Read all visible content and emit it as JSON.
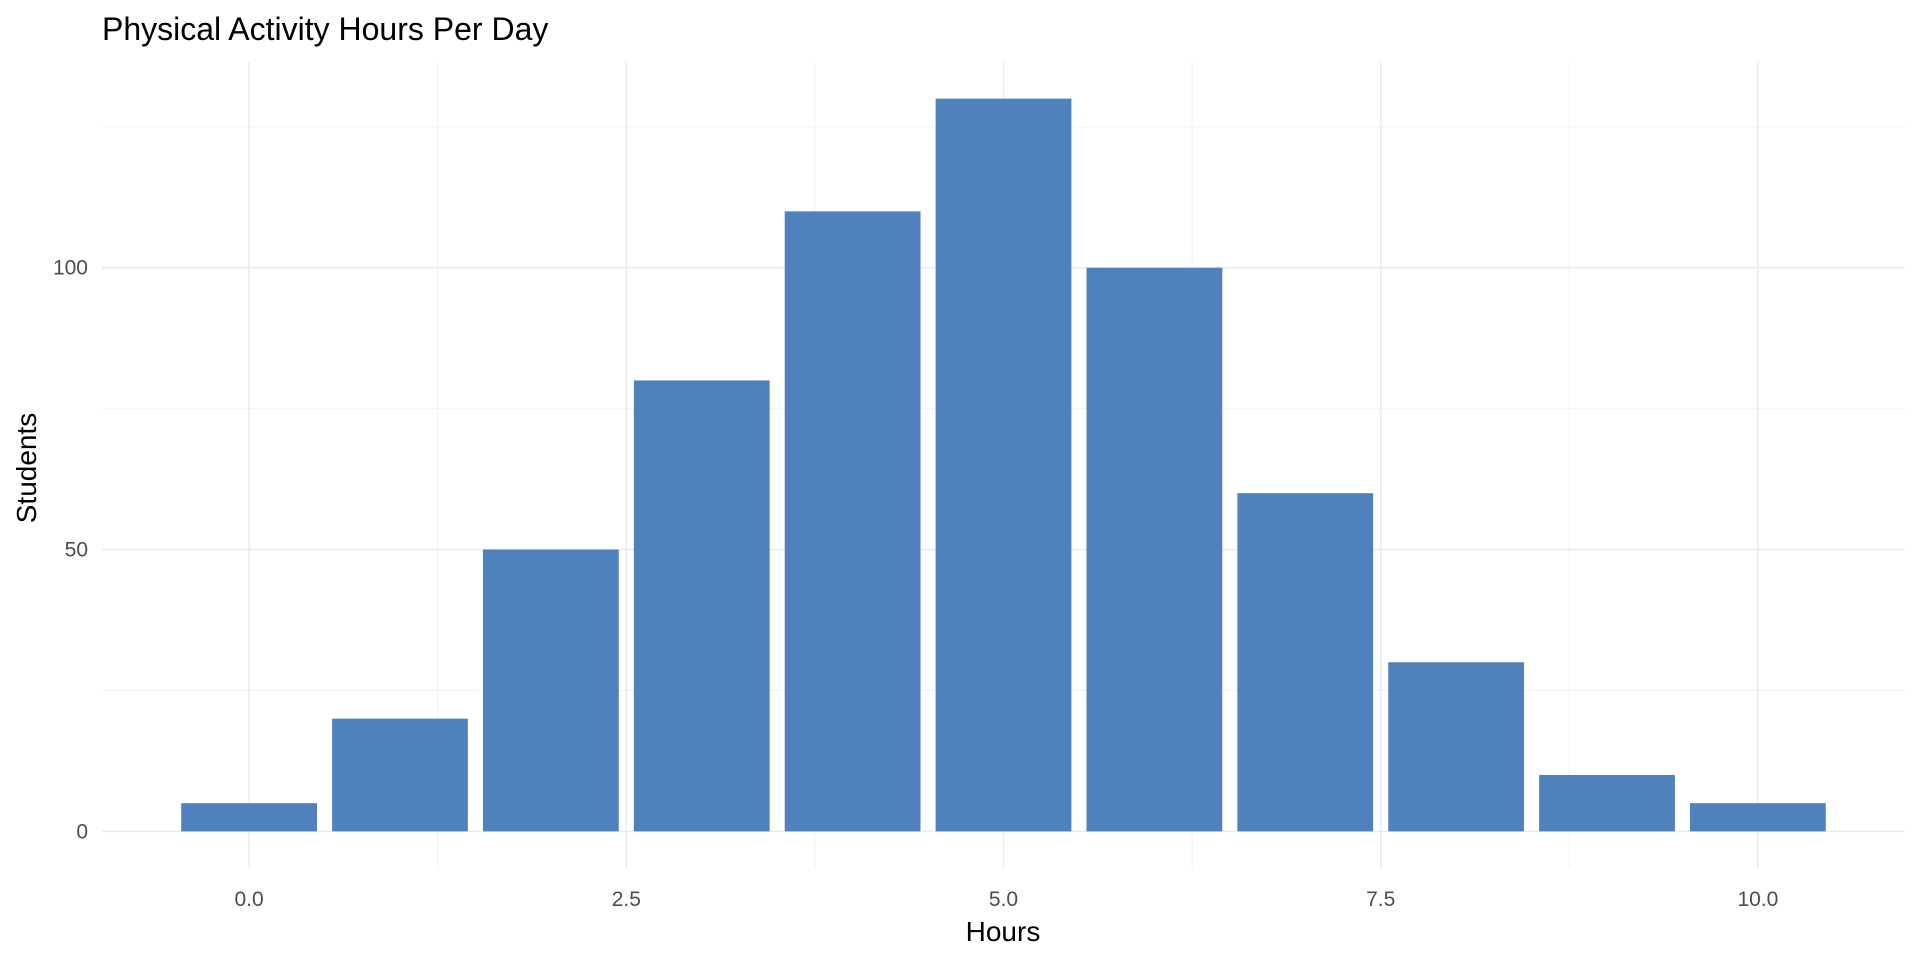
{
  "chart_data": {
    "type": "bar",
    "title": "Physical Activity Hours Per Day",
    "xlabel": "Hours",
    "ylabel": "Students",
    "x": [
      0,
      1,
      2,
      3,
      4,
      5,
      6,
      7,
      8,
      9,
      10
    ],
    "values": [
      5,
      20,
      50,
      80,
      110,
      130,
      100,
      60,
      30,
      10,
      5
    ],
    "bar_width": 0.9,
    "xlim": [
      -0.975,
      10.975
    ],
    "ylim": [
      -6.5,
      136.5
    ],
    "x_ticks": [
      0,
      2.5,
      5,
      7.5,
      10
    ],
    "x_tick_labels": [
      "0.0",
      "2.5",
      "5.0",
      "7.5",
      "10.0"
    ],
    "y_ticks": [
      0,
      50,
      100
    ],
    "y_tick_labels": [
      "0",
      "50",
      "100"
    ],
    "bar_color": "#4f81bd",
    "grid": true,
    "legend": false
  }
}
